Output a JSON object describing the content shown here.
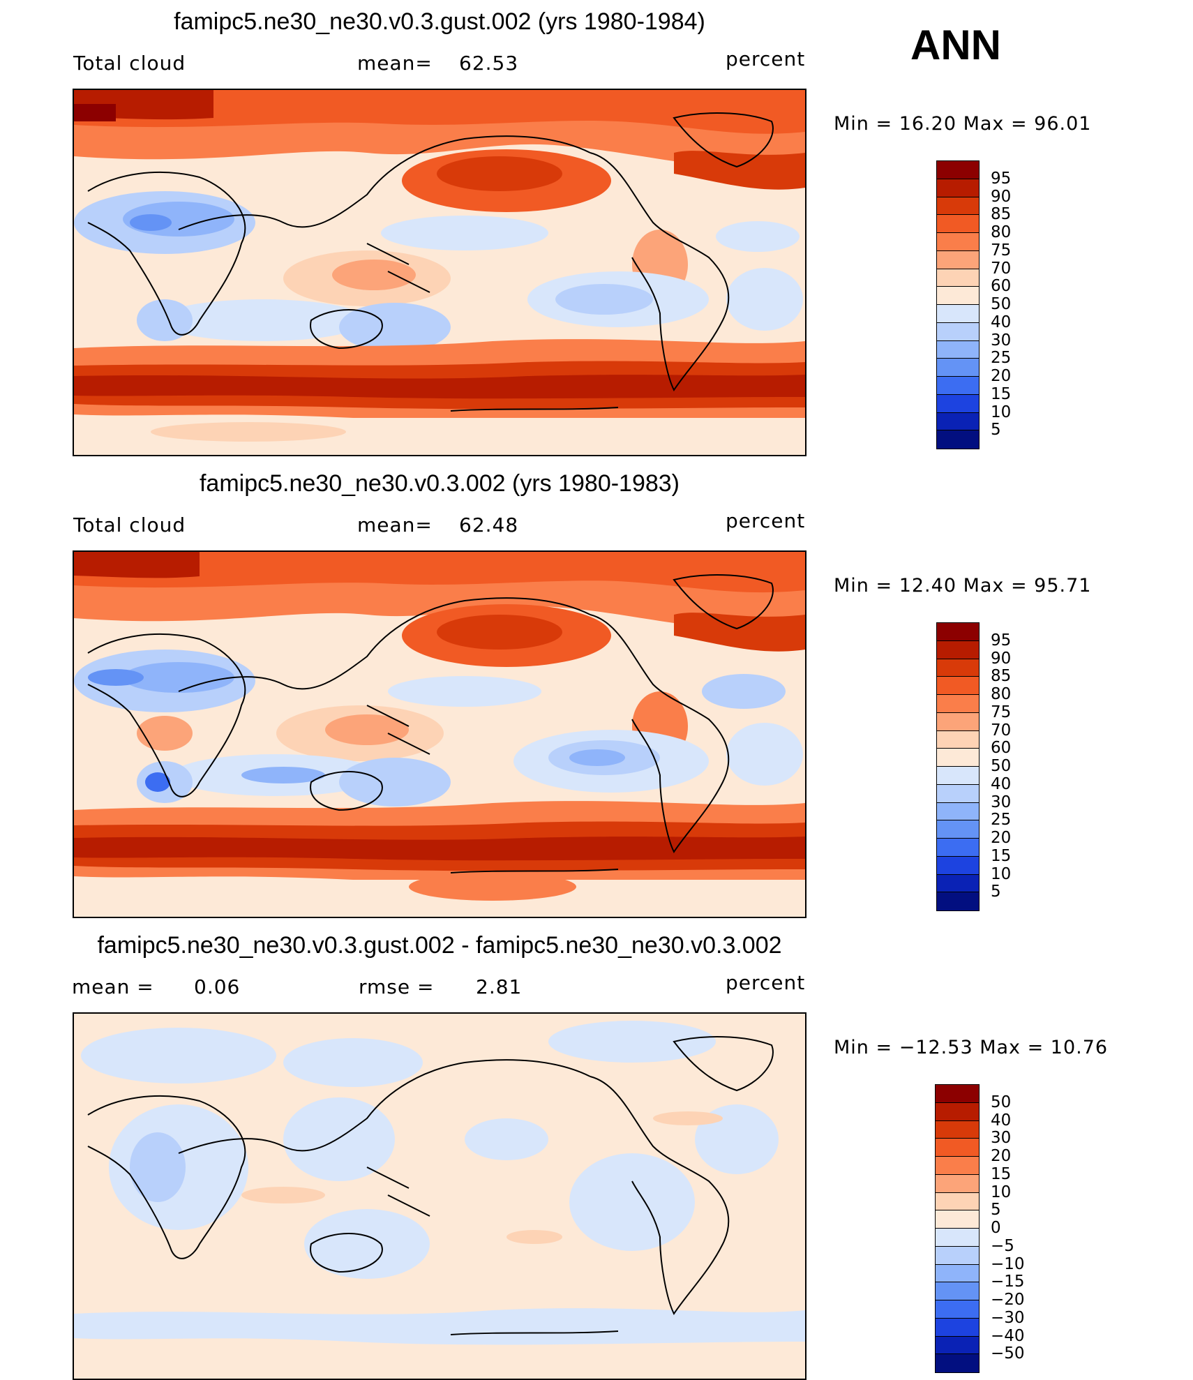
{
  "season": "ANN",
  "panels": [
    {
      "title": "famipc5.ne30_ne30.v0.3.gust.002 (yrs 1980-1984)",
      "left_label": "Total cloud",
      "center_label": "mean=",
      "center_value": "62.53",
      "right_label": "percent",
      "minmax": "Min =   16.20 Max =   96.01",
      "levels": [
        "95",
        "90",
        "85",
        "80",
        "75",
        "70",
        "60",
        "50",
        "40",
        "30",
        "25",
        "20",
        "15",
        "10",
        "5"
      ],
      "colors": [
        "#8c0000",
        "#b71c00",
        "#d83a09",
        "#f15a24",
        "#fa7e4a",
        "#fca479",
        "#fdd3b5",
        "#fde9d7",
        "#d8e6fb",
        "#b8d0fb",
        "#8fb4fa",
        "#6493f5",
        "#3c6df2",
        "#1d43e0",
        "#0a22b5",
        "#020f80"
      ],
      "map": {
        "name": "model-a"
      }
    },
    {
      "title": "famipc5.ne30_ne30.v0.3.002 (yrs 1980-1983)",
      "left_label": "Total cloud",
      "center_label": "mean=",
      "center_value": "62.48",
      "right_label": "percent",
      "minmax": "Min =   12.40 Max =   95.71",
      "levels": [
        "95",
        "90",
        "85",
        "80",
        "75",
        "70",
        "60",
        "50",
        "40",
        "30",
        "25",
        "20",
        "15",
        "10",
        "5"
      ],
      "colors": [
        "#8c0000",
        "#b71c00",
        "#d83a09",
        "#f15a24",
        "#fa7e4a",
        "#fca479",
        "#fdd3b5",
        "#fde9d7",
        "#d8e6fb",
        "#b8d0fb",
        "#8fb4fa",
        "#6493f5",
        "#3c6df2",
        "#1d43e0",
        "#0a22b5",
        "#020f80"
      ],
      "map": {
        "name": "model-b"
      }
    },
    {
      "title": "famipc5.ne30_ne30.v0.3.gust.002 - famipc5.ne30_ne30.v0.3.002",
      "left_label": "mean =",
      "left_value": "0.06",
      "center_label": "rmse =",
      "center_value": "2.81",
      "right_label": "percent",
      "minmax": "Min = −12.53 Max =   10.76",
      "levels": [
        "50",
        "40",
        "30",
        "20",
        "15",
        "10",
        "5",
        "0",
        "−5",
        "−10",
        "−15",
        "−20",
        "−30",
        "−40",
        "−50"
      ],
      "colors": [
        "#8c0000",
        "#b71c00",
        "#d83a09",
        "#f15a24",
        "#fa7e4a",
        "#fca479",
        "#fdd3b5",
        "#fde9d7",
        "#d8e6fb",
        "#b8d0fb",
        "#8fb4fa",
        "#6493f5",
        "#3c6df2",
        "#1d43e0",
        "#0a22b5",
        "#020f80"
      ],
      "map": {
        "name": "difference"
      }
    }
  ]
}
